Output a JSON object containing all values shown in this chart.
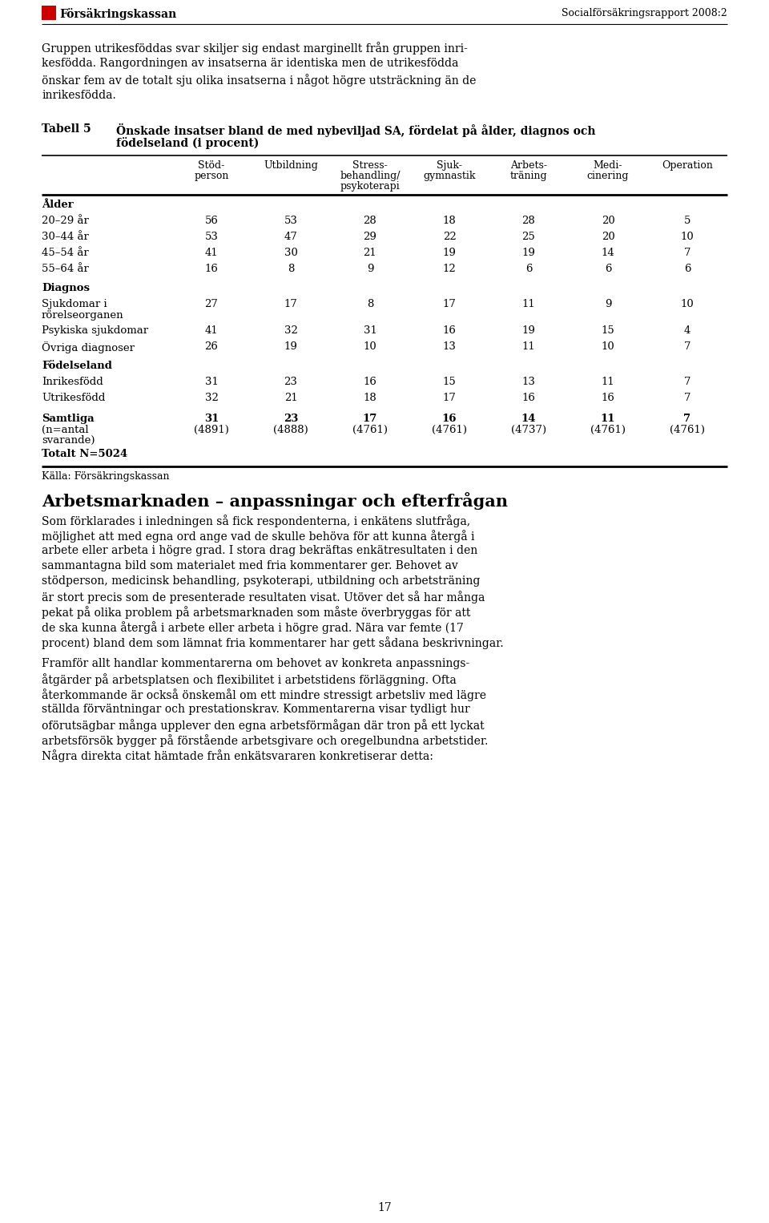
{
  "header_logo_text": "Försäkringskassan",
  "header_right_text": "Socialförsäkringsrapport 2008:2",
  "intro_text_lines": [
    "Gruppen utrikesföddas svar skiljer sig endast marginellt från gruppen inri-",
    "kesfödda. Rangordningen av insatserna är identiska men de utrikesfödda",
    "önskar fem av de totalt sju olika insatserna i något högre utsträckning än de",
    "inrikesfödda."
  ],
  "table_number": "Tabell 5",
  "table_title_line1": "Önskade insatser bland de med nybeviljad SA, fördelat på ålder, diagnos och",
  "table_title_line2": "födelseland (i procent)",
  "col_headers": [
    [
      "Stöd-",
      "person"
    ],
    [
      "Utbildning"
    ],
    [
      "Stress-",
      "behandling/",
      "psykoterapi"
    ],
    [
      "Sjuk-",
      "gymnastik"
    ],
    [
      "Arbets-",
      "träning"
    ],
    [
      "Medi-",
      "cinering"
    ],
    [
      "Operation"
    ]
  ],
  "sections": [
    {
      "section_label": "Ålder",
      "bold": true,
      "rows": [
        {
          "label": "20–29 år",
          "label_lines": [
            "20–29 år"
          ],
          "values": [
            56,
            53,
            28,
            18,
            28,
            20,
            5
          ]
        },
        {
          "label": "30–44 år",
          "label_lines": [
            "30–44 år"
          ],
          "values": [
            53,
            47,
            29,
            22,
            25,
            20,
            10
          ]
        },
        {
          "label": "45–54 år",
          "label_lines": [
            "45–54 år"
          ],
          "values": [
            41,
            30,
            21,
            19,
            19,
            14,
            7
          ]
        },
        {
          "label": "55–64 år",
          "label_lines": [
            "55–64 år"
          ],
          "values": [
            16,
            8,
            9,
            12,
            6,
            6,
            6
          ]
        }
      ]
    },
    {
      "section_label": "Diagnos",
      "bold": true,
      "rows": [
        {
          "label": "Sjukdomar i rörelseorganen",
          "label_lines": [
            "Sjukdomar i",
            "rörelseorganen"
          ],
          "values": [
            27,
            17,
            8,
            17,
            11,
            9,
            10
          ]
        },
        {
          "label": "Psykiska sjukdomar",
          "label_lines": [
            "Psykiska sjukdomar"
          ],
          "values": [
            41,
            32,
            31,
            16,
            19,
            15,
            4
          ]
        },
        {
          "label": "Övriga diagnoser",
          "label_lines": [
            "Övriga diagnoser"
          ],
          "values": [
            26,
            19,
            10,
            13,
            11,
            10,
            7
          ]
        }
      ]
    },
    {
      "section_label": "Födelseland",
      "bold": true,
      "rows": [
        {
          "label": "Inrikesfödd",
          "label_lines": [
            "Inrikesfödd"
          ],
          "values": [
            31,
            23,
            16,
            15,
            13,
            11,
            7
          ]
        },
        {
          "label": "Utrikesfödd",
          "label_lines": [
            "Utrikesfödd"
          ],
          "values": [
            32,
            21,
            18,
            17,
            16,
            16,
            7
          ]
        }
      ]
    }
  ],
  "totals_bold_values": [
    "31",
    "23",
    "17",
    "16",
    "14",
    "11",
    "7"
  ],
  "totals_n_values": [
    "(4891)",
    "(4888)",
    "(4761)",
    "(4761)",
    "(4737)",
    "(4761)",
    "(4761)"
  ],
  "totalt_label": "Totalt N=5024",
  "source_label": "Källa: Försäkringskassan",
  "bottom_heading": "Arbetsmarknaden – anpassningar och efterfrågan",
  "bottom_para1_lines": [
    "Som förklarades i inledningen så fick respondenterna, i enkätens slutfråga,",
    "möjlighet att med egna ord ange vad de skulle behöva för att kunna återgå i",
    "arbete eller arbeta i högre grad. I stora drag bekräftas enkätresultaten i den",
    "sammantagna bild som materialet med fria kommentarer ger. Behovet av",
    "stödperson, medicinsk behandling, psykoterapi, utbildning och arbetsträning",
    "är stort precis som de presenterade resultaten visat. Utöver det så har många",
    "pekat på olika problem på arbetsmarknaden som måste överbryggas för att",
    "de ska kunna återgå i arbete eller arbeta i högre grad. Nära var femte (17",
    "procent) bland dem som lämnat fria kommentarer har gett sådana beskrivningar."
  ],
  "bottom_para2_lines": [
    "Framför allt handlar kommentarerna om behovet av konkreta anpassnings-",
    "åtgärder på arbetsplatsen och flexibilitet i arbetstidens förläggning. Ofta",
    "återkommande är också önskemål om ett mindre stressigt arbetsliv med lägre",
    "ställda förväntningar och prestationskrav. Kommentarerna visar tydligt hur",
    "oförutsägbar många upplever den egna arbetsförmågan där tron på ett lyckat",
    "arbetsförsök bygger på förstående arbetsgivare och oregelbundna arbetstider.",
    "Några direkta citat hämtade från enkätsvararen konkretiserar detta:"
  ],
  "page_number": "17",
  "bg_color": "#ffffff",
  "text_color": "#000000"
}
